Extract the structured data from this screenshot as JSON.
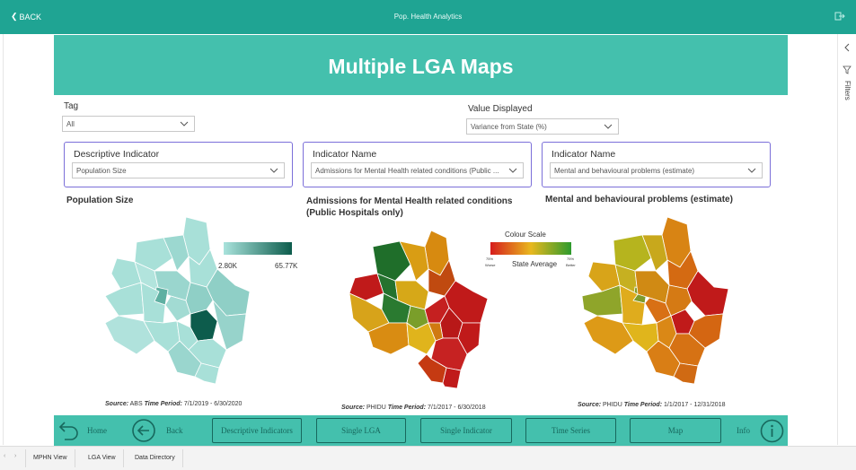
{
  "topbar": {
    "back_label": "BACK",
    "app_title": "Pop. Health Analytics"
  },
  "header": {
    "title": "Multiple LGA Maps"
  },
  "filters": {
    "tag_label": "Tag",
    "tag_value": "All",
    "value_displayed_label": "Value Displayed",
    "value_displayed_value": "Variance from State (%)"
  },
  "indicators": [
    {
      "label": "Descriptive Indicator",
      "value": "Population Size"
    },
    {
      "label": "Indicator Name",
      "value": "Admissions for Mental Health related conditions (Public ..."
    },
    {
      "label": "Indicator Name",
      "value": "Mental and behavioural problems (estimate)"
    }
  ],
  "maps": [
    {
      "title": "Population Size",
      "source_prefix": "Source:",
      "source_name": "ABS",
      "period_label": "Time Period:",
      "period": "7/1/2019 - 6/30/2020"
    },
    {
      "title_line1": "Admissions for Mental Health related conditions",
      "title_line2": "(Public Hospitals only)",
      "source_prefix": "Source:",
      "source_name": "PHIDU",
      "period_label": "Time Period:",
      "period": "7/1/2017 - 6/30/2018"
    },
    {
      "title": "Mental and behavioural problems (estimate)",
      "source_prefix": "Source:",
      "source_name": "PHIDU",
      "period_label": "Time Period:",
      "period": "1/1/2017 - 12/31/2018"
    }
  ],
  "legend_population": {
    "min": "2.80K",
    "max": "65.77K",
    "color_low": "#a9e3dc",
    "color_high": "#0d5c4c"
  },
  "colour_scale": {
    "title": "Colour Scale",
    "left_top": "75%",
    "left_bottom": "Worse",
    "center": "State Average",
    "right_top": "75%",
    "right_bottom": "Better"
  },
  "nav": {
    "home": "Home",
    "back": "Back",
    "descriptive": "Descriptive Indicators",
    "single_lga": "Single LGA",
    "single_indicator": "Single Indicator",
    "time_series": "Time Series",
    "map": "Map",
    "info": "Info"
  },
  "right_rail": {
    "filters": "Filters"
  },
  "tabs": [
    "MPHN View",
    "LGA View",
    "Data Directory"
  ],
  "colors": {
    "topbar": "#1fa493",
    "banner": "#44c0ad",
    "accent_border": "#7b6fd9"
  }
}
